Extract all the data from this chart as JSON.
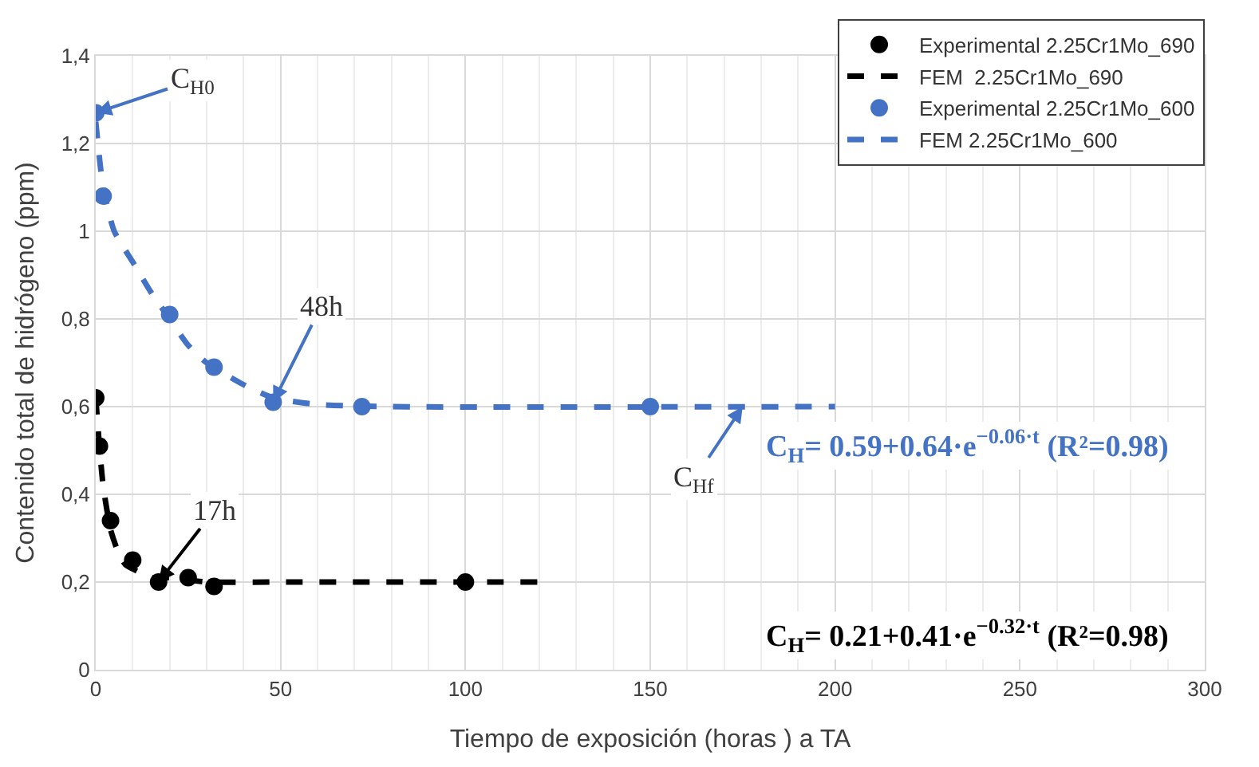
{
  "chart_data": {
    "type": "scatter",
    "xlabel": "Tiempo de exposición (horas ) a TA",
    "ylabel": "Contenido total de hidrógeno (ppm)",
    "xlim": [
      0,
      300
    ],
    "xticks": [
      0,
      50,
      100,
      150,
      200,
      250,
      300
    ],
    "ylim": [
      0,
      1.4
    ],
    "yticks": [
      {
        "value": 0,
        "label": "0"
      },
      {
        "value": 0.2,
        "label": "0,2"
      },
      {
        "value": 0.4,
        "label": "0,4"
      },
      {
        "value": 0.6,
        "label": "0,6"
      },
      {
        "value": 0.8,
        "label": "0,8"
      },
      {
        "value": 1,
        "label": "1"
      },
      {
        "value": 1.2,
        "label": "1,2"
      },
      {
        "value": 1.4,
        "label": "1,4"
      }
    ],
    "grid": true,
    "legend": "top right",
    "series": [
      {
        "name": "Experimental 2.25Cr1Mo_690",
        "marker": "circle",
        "color": "#000000",
        "x": [
          0,
          1,
          4,
          10,
          17,
          25,
          32,
          100
        ],
        "values": [
          0.62,
          0.51,
          0.34,
          0.25,
          0.2,
          0.21,
          0.19,
          0.2
        ]
      },
      {
        "name": "FEM  2.25Cr1Mo_690",
        "type": "line",
        "line_style": "dashed",
        "color": "#000000",
        "x": [
          0,
          1,
          2,
          4,
          6,
          8,
          10,
          15,
          20,
          30,
          50,
          120
        ],
        "values": [
          0.62,
          0.51,
          0.42,
          0.32,
          0.27,
          0.24,
          0.23,
          0.21,
          0.21,
          0.2,
          0.2,
          0.2
        ]
      },
      {
        "name": "Experimental 2.25Cr1Mo_600",
        "marker": "circle",
        "color": "#4472c4",
        "x": [
          0,
          2,
          20,
          32,
          48,
          72,
          150
        ],
        "values": [
          1.27,
          1.08,
          0.81,
          0.69,
          0.61,
          0.6,
          0.6
        ]
      },
      {
        "name": "FEM 2.25Cr1Mo_600",
        "type": "line",
        "line_style": "dashed",
        "color": "#4472c4",
        "x": [
          0,
          2,
          5,
          10,
          15,
          20,
          25,
          30,
          40,
          48,
          60,
          80,
          200
        ],
        "values": [
          1.25,
          1.1,
          1.0,
          0.93,
          0.86,
          0.8,
          0.74,
          0.7,
          0.65,
          0.62,
          0.605,
          0.6,
          0.6
        ]
      }
    ],
    "annotations": [
      {
        "text": "C$_{H0}$",
        "x": 0,
        "y": 1.27
      },
      {
        "text": "48h",
        "x": 48,
        "y": 0.61
      },
      {
        "text": "17h",
        "x": 17,
        "y": 0.2
      },
      {
        "text": "C$_{Hf}$",
        "x": 175,
        "y": 0.6
      },
      "C$_{H}$= 0.59+0.64·e$^{−0.06·t}$ (R²=0.98)",
      "C$_{H}$= 0.21+0.41·e$^{−0.32·t}$ (R²=0.98)"
    ]
  }
}
